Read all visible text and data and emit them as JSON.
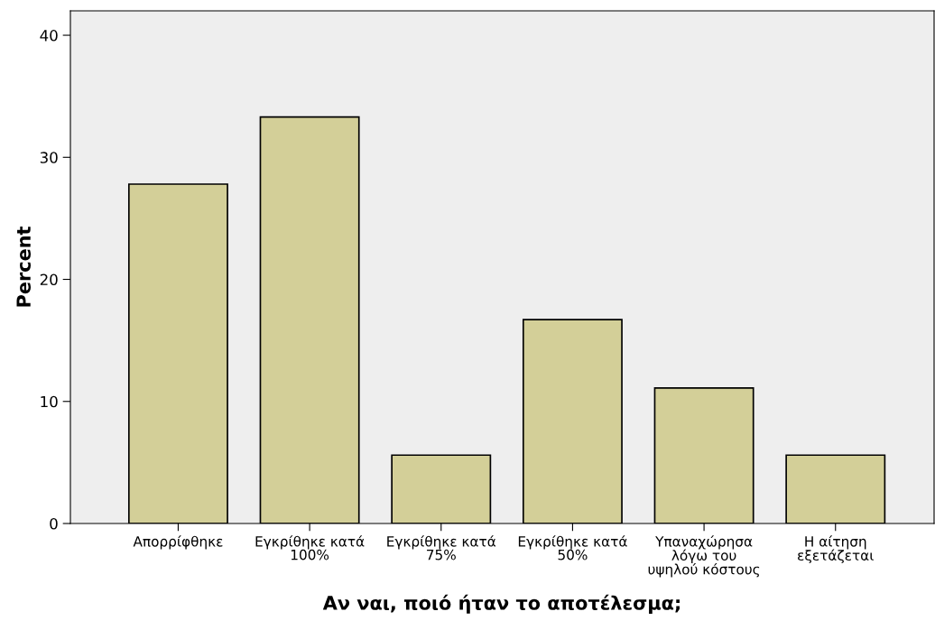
{
  "chart_data": {
    "type": "bar",
    "categories": [
      "Απορρίφθηκε",
      "Εγκρίθηκε κατά\n100%",
      "Εγκρίθηκε κατά\n75%",
      "Εγκρίθηκε κατά\n50%",
      "Υπαναχώρησα\nλόγω του\nυψηλού κόστους",
      "Η αίτηση\nεξετάζεται"
    ],
    "values": [
      27.8,
      33.3,
      5.6,
      16.7,
      11.1,
      5.6
    ],
    "color": "#d3cf98",
    "xlabel": "Αν ναι, ποιό ήταν το αποτέλεσμα;",
    "ylabel": "Percent",
    "ylim": [
      0,
      42
    ],
    "yticks": [
      0,
      10,
      20,
      30,
      40
    ],
    "grid": false
  }
}
